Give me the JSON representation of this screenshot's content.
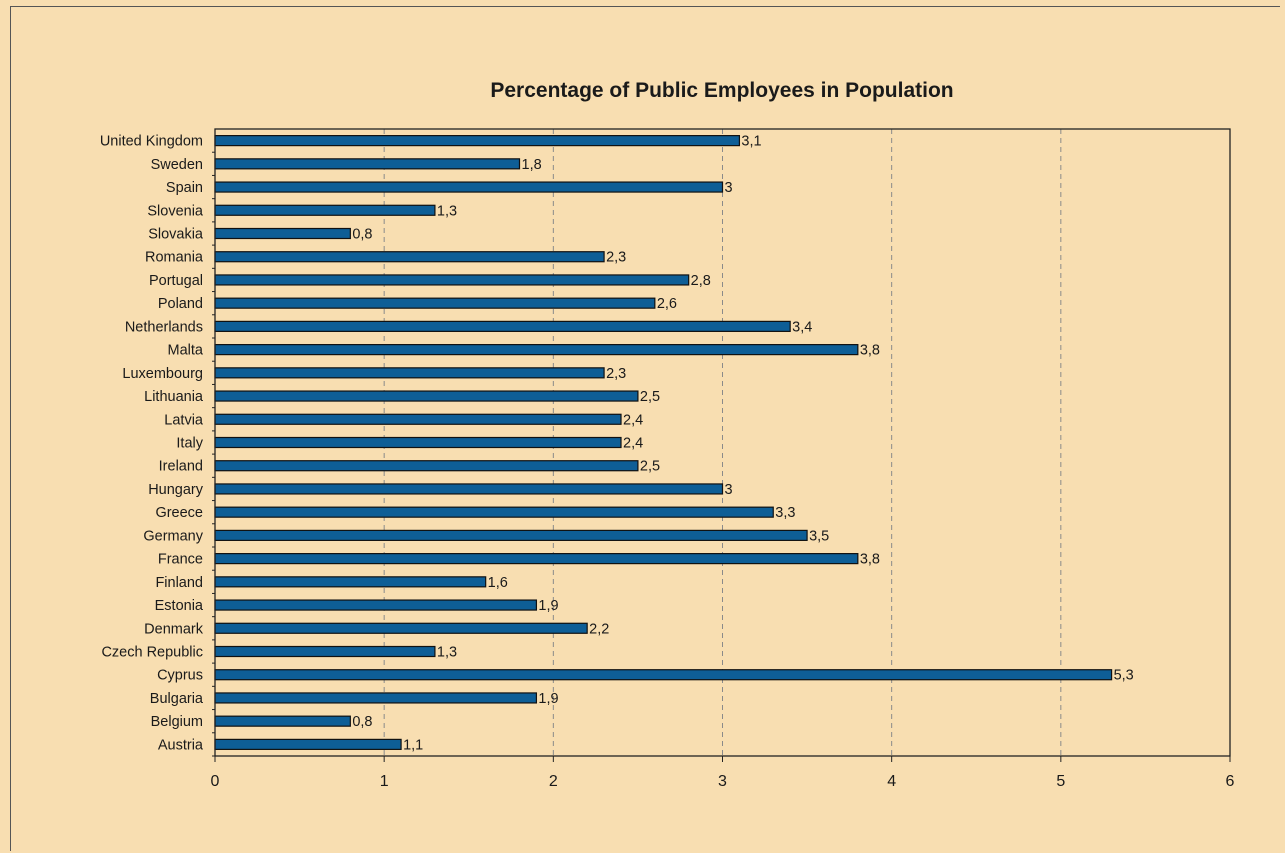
{
  "chart_data": {
    "type": "bar",
    "orientation": "horizontal",
    "title": "Percentage of Public Employees in Population",
    "categories": [
      "United Kingdom",
      "Sweden",
      "Spain",
      "Slovenia",
      "Slovakia",
      "Romania",
      "Portugal",
      "Poland",
      "Netherlands",
      "Malta",
      "Luxembourg",
      "Lithuania",
      "Latvia",
      "Italy",
      "Ireland",
      "Hungary",
      "Greece",
      "Germany",
      "France",
      "Finland",
      "Estonia",
      "Denmark",
      "Czech Republic",
      "Cyprus",
      "Bulgaria",
      "Belgium",
      "Austria"
    ],
    "values": [
      3.1,
      1.8,
      3,
      1.3,
      0.8,
      2.3,
      2.8,
      2.6,
      3.4,
      3.8,
      2.3,
      2.5,
      2.4,
      2.4,
      2.5,
      3,
      3.3,
      3.5,
      3.8,
      1.6,
      1.9,
      2.2,
      1.3,
      5.3,
      1.9,
      0.8,
      1.1
    ],
    "value_labels": [
      "3,1",
      "1,8",
      "3",
      "1,3",
      "0,8",
      "2,3",
      "2,8",
      "2,6",
      "3,4",
      "3,8",
      "2,3",
      "2,5",
      "2,4",
      "2,4",
      "2,5",
      "3",
      "3,3",
      "3,5",
      "3,8",
      "1,6",
      "1,9",
      "2,2",
      "1,3",
      "5,3",
      "1,9",
      "0,8",
      "1,1"
    ],
    "xlim": [
      0,
      6
    ],
    "x_ticks": [
      0,
      1,
      2,
      3,
      4,
      5,
      6
    ],
    "x_tick_labels": [
      "0",
      "1",
      "2",
      "3",
      "4",
      "5",
      "6"
    ],
    "grid": "vertical-dashed",
    "legend": "none",
    "colors": {
      "background": "#f8deb1",
      "bar_fill": "#0e5e96",
      "bar_stroke": "#111111",
      "grid": "#8a8a8a",
      "axis": "#222222"
    }
  }
}
